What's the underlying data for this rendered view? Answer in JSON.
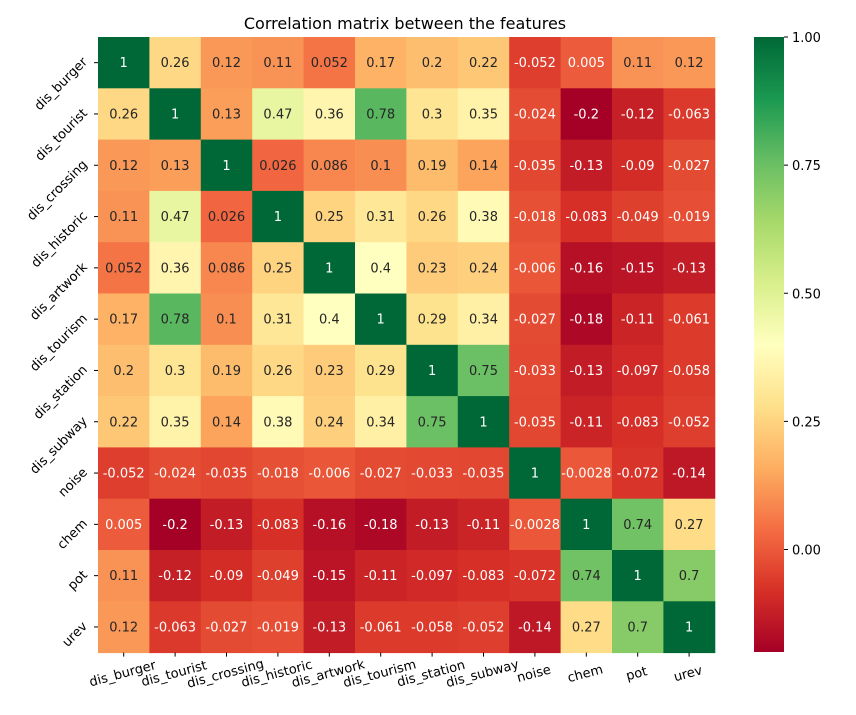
{
  "chart_data": {
    "type": "heatmap",
    "title": "Correlation matrix between the features",
    "labels": [
      "dis_burger",
      "dis_tourist",
      "dis_crossing",
      "dis_historic",
      "dis_artwork",
      "dis_tourism",
      "dis_station",
      "dis_subway",
      "noise",
      "chem",
      "pot",
      "urev"
    ],
    "values": [
      [
        "1",
        "0.26",
        "0.12",
        "0.11",
        "0.052",
        "0.17",
        "0.2",
        "0.22",
        "-0.052",
        "0.005",
        "0.11",
        "0.12"
      ],
      [
        "0.26",
        "1",
        "0.13",
        "0.47",
        "0.36",
        "0.78",
        "0.3",
        "0.35",
        "-0.024",
        "-0.2",
        "-0.12",
        "-0.063"
      ],
      [
        "0.12",
        "0.13",
        "1",
        "0.026",
        "0.086",
        "0.1",
        "0.19",
        "0.14",
        "-0.035",
        "-0.13",
        "-0.09",
        "-0.027"
      ],
      [
        "0.11",
        "0.47",
        "0.026",
        "1",
        "0.25",
        "0.31",
        "0.26",
        "0.38",
        "-0.018",
        "-0.083",
        "-0.049",
        "-0.019"
      ],
      [
        "0.052",
        "0.36",
        "0.086",
        "0.25",
        "1",
        "0.4",
        "0.23",
        "0.24",
        "-0.006",
        "-0.16",
        "-0.15",
        "-0.13"
      ],
      [
        "0.17",
        "0.78",
        "0.1",
        "0.31",
        "0.4",
        "1",
        "0.29",
        "0.34",
        "-0.027",
        "-0.18",
        "-0.11",
        "-0.061"
      ],
      [
        "0.2",
        "0.3",
        "0.19",
        "0.26",
        "0.23",
        "0.29",
        "1",
        "0.75",
        "-0.033",
        "-0.13",
        "-0.097",
        "-0.058"
      ],
      [
        "0.22",
        "0.35",
        "0.14",
        "0.38",
        "0.24",
        "0.34",
        "0.75",
        "1",
        "-0.035",
        "-0.11",
        "-0.083",
        "-0.052"
      ],
      [
        "-0.052",
        "-0.024",
        "-0.035",
        "-0.018",
        "-0.006",
        "-0.027",
        "-0.033",
        "-0.035",
        "1",
        "-0.0028",
        "-0.072",
        "-0.14"
      ],
      [
        "0.005",
        "-0.2",
        "-0.13",
        "-0.083",
        "-0.16",
        "-0.18",
        "-0.13",
        "-0.11",
        "-0.0028",
        "1",
        "0.74",
        "0.27"
      ],
      [
        "0.11",
        "-0.12",
        "-0.09",
        "-0.049",
        "-0.15",
        "-0.11",
        "-0.097",
        "-0.083",
        "-0.072",
        "0.74",
        "1",
        "0.7"
      ],
      [
        "0.12",
        "-0.063",
        "-0.027",
        "-0.019",
        "-0.13",
        "-0.061",
        "-0.058",
        "-0.052",
        "-0.14",
        "0.27",
        "0.7",
        "1"
      ]
    ],
    "colorbar": {
      "colormap": "RdYlGn",
      "vmin": -0.2,
      "vmax": 1.0,
      "ticks": [
        "0.00",
        "0.25",
        "0.50",
        "0.75",
        "1.00"
      ]
    }
  }
}
